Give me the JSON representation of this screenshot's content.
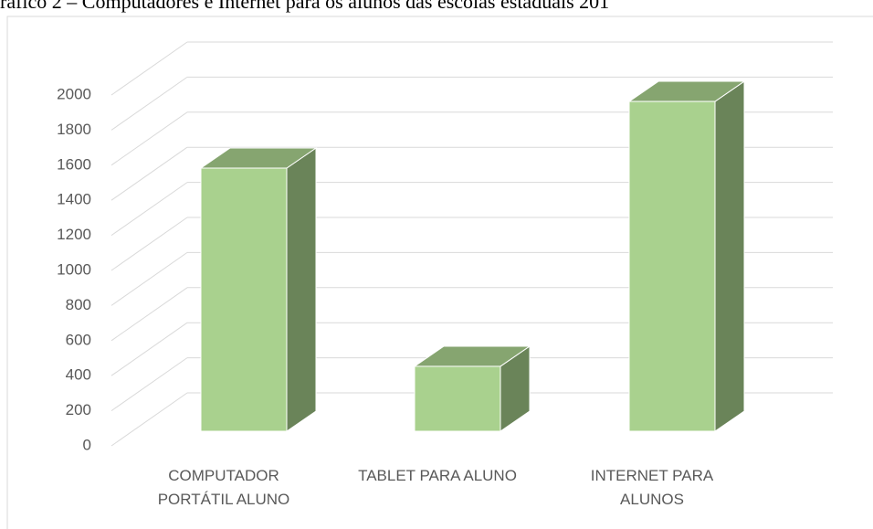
{
  "chart_data": {
    "type": "bar3d",
    "title": "ráfico 2 – Computadores e Internet para os alunos das escolas estaduais 201",
    "categories": [
      "COMPUTADOR PORTÁTIL ALUNO",
      "TABLET PARA ALUNO",
      "INTERNET PARA ALUNOS"
    ],
    "values": [
      1500,
      370,
      1880
    ],
    "color": "#a9d18e",
    "ylim": [
      0,
      2000
    ],
    "yticks": [
      0,
      200,
      400,
      600,
      800,
      1000,
      1200,
      1400,
      1600,
      1800,
      2000
    ],
    "grid": true
  }
}
